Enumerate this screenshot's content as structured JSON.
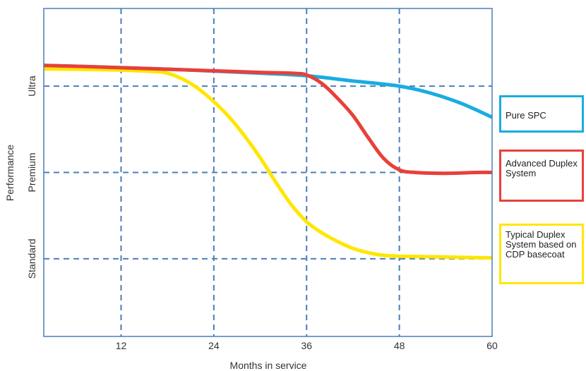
{
  "chart_data": {
    "type": "line",
    "xlabel": "Months in service",
    "ylabel": "Performance",
    "xlim": [
      2,
      60
    ],
    "xticks": [
      "12",
      "24",
      "36",
      "48",
      "60"
    ],
    "xtick_values": [
      12,
      24,
      36,
      48,
      60
    ],
    "ylevels": [
      {
        "label": "Standard",
        "value": 1
      },
      {
        "label": "Premium",
        "value": 2
      },
      {
        "label": "Ultra",
        "value": 3
      }
    ],
    "ylim": [
      0.1,
      3.9
    ],
    "grid": true,
    "series": [
      {
        "name": "Pure SPC",
        "color": "#1aace3",
        "x": [
          2,
          10,
          20,
          30,
          36,
          42,
          48,
          52,
          56,
          60
        ],
        "y": [
          3.24,
          3.22,
          3.19,
          3.15,
          3.12,
          3.06,
          3.0,
          2.92,
          2.8,
          2.64
        ]
      },
      {
        "name": "Advanced Duplex System",
        "color": "#e8403a",
        "x": [
          2,
          10,
          20,
          30,
          34,
          36,
          38,
          40,
          42,
          44,
          46,
          48,
          50,
          54,
          58,
          60
        ],
        "y": [
          3.24,
          3.22,
          3.19,
          3.16,
          3.15,
          3.13,
          3.03,
          2.86,
          2.66,
          2.4,
          2.16,
          2.03,
          2.0,
          1.99,
          2.0,
          2.0
        ]
      },
      {
        "name": "Typical Duplex System based on CDP basecoat",
        "color": "#ffe600",
        "x": [
          2,
          10,
          16,
          18,
          20,
          22,
          24,
          26,
          28,
          30,
          32,
          34,
          36,
          38,
          40,
          42,
          44,
          46,
          48,
          54,
          60
        ],
        "y": [
          3.2,
          3.19,
          3.17,
          3.15,
          3.08,
          2.97,
          2.82,
          2.64,
          2.42,
          2.17,
          1.89,
          1.63,
          1.43,
          1.3,
          1.2,
          1.12,
          1.07,
          1.04,
          1.03,
          1.02,
          1.01
        ]
      }
    ]
  },
  "legend": {
    "pure_spc": "Pure SPC",
    "advanced_duplex": "Advanced Duplex System",
    "typical_duplex": "Typical Duplex System based on CDP basecoat"
  }
}
